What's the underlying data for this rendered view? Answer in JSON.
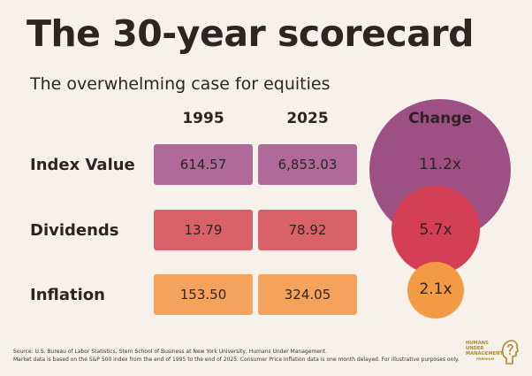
{
  "title": "The 30-year scorecard",
  "subtitle": "The overwhelming case for equities",
  "chart_data": {
    "type": "table",
    "title": "The 30-year scorecard",
    "subtitle": "The overwhelming case for equities",
    "columns": [
      "1995",
      "2025",
      "Change"
    ],
    "rows": [
      {
        "label": "Index Value",
        "v1995": "614.57",
        "v2025": "6,853.03",
        "change": "11.2x",
        "change_value": 11.2,
        "color": "#b06a9a",
        "circle_color": "#9e4f84"
      },
      {
        "label": "Dividends",
        "v1995": "13.79",
        "v2025": "78.92",
        "change": "5.7x",
        "change_value": 5.7,
        "color": "#d9626a",
        "circle_color": "#d43f55"
      },
      {
        "label": "Inflation",
        "v1995": "153.50",
        "v2025": "324.05",
        "change": "2.1x",
        "change_value": 2.1,
        "color": "#f4a25c",
        "circle_color": "#f39a45"
      }
    ]
  },
  "footer": {
    "line1": "Source: U.S. Bureau of Labor Statistics, Stern School of Business at New York University, Humans Under Management.",
    "line2": "Market data is based on the S&P 500 index from the end of 1995 to the end of 2025. Consumer Price Inflation data is one month delayed. For illustrative purposes only."
  },
  "logo": {
    "line1": "HUMANS",
    "line2": "UNDER",
    "line3": "MANAGEMENT",
    "line4": "PREMIUM",
    "color": "#b08a2a"
  }
}
